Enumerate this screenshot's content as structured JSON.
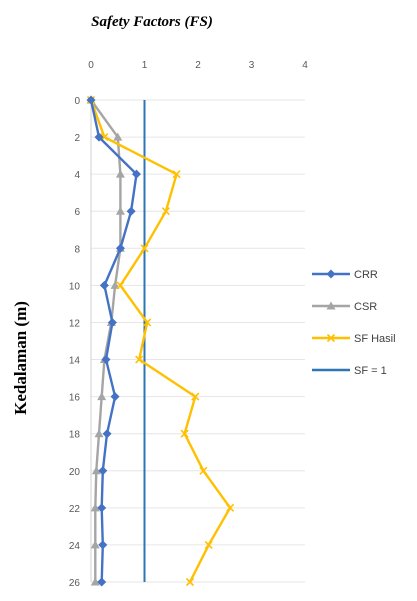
{
  "chart_data": {
    "type": "line",
    "title": "Safety Factors (FS)",
    "xlabel": "",
    "ylabel": "Kedalaman (m)",
    "x_axis_position": "top",
    "y_axis_inverted": true,
    "xlim": [
      0,
      4
    ],
    "ylim": [
      0,
      26
    ],
    "x_ticks": [
      "0",
      "1",
      "2",
      "3",
      "4"
    ],
    "y_ticks": [
      "0",
      "2",
      "4",
      "6",
      "8",
      "10",
      "12",
      "14",
      "16",
      "18",
      "20",
      "22",
      "24",
      "26"
    ],
    "grid": "horizontal",
    "legend_position": "right",
    "series": [
      {
        "name": "CRR",
        "color": "#4472C4",
        "marker": "diamond",
        "points": [
          [
            0.0,
            0
          ],
          [
            0.15,
            2
          ],
          [
            0.85,
            4
          ],
          [
            0.75,
            6
          ],
          [
            0.55,
            8
          ],
          [
            0.25,
            10
          ],
          [
            0.4,
            12
          ],
          [
            0.28,
            14
          ],
          [
            0.45,
            16
          ],
          [
            0.3,
            18
          ],
          [
            0.22,
            20
          ],
          [
            0.2,
            22
          ],
          [
            0.22,
            24
          ],
          [
            0.2,
            26
          ]
        ]
      },
      {
        "name": "CSR",
        "color": "#A5A5A5",
        "marker": "triangle",
        "points": [
          [
            0.0,
            0
          ],
          [
            0.5,
            2
          ],
          [
            0.55,
            4
          ],
          [
            0.55,
            6
          ],
          [
            0.55,
            8
          ],
          [
            0.45,
            10
          ],
          [
            0.38,
            12
          ],
          [
            0.25,
            14
          ],
          [
            0.2,
            16
          ],
          [
            0.15,
            18
          ],
          [
            0.1,
            20
          ],
          [
            0.08,
            22
          ],
          [
            0.08,
            24
          ],
          [
            0.08,
            26
          ]
        ]
      },
      {
        "name": "SF Hasil",
        "color": "#FFC000",
        "marker": "x",
        "points": [
          [
            0.0,
            0
          ],
          [
            0.25,
            2
          ],
          [
            1.6,
            4
          ],
          [
            1.4,
            6
          ],
          [
            1.0,
            8
          ],
          [
            0.55,
            10
          ],
          [
            1.05,
            12
          ],
          [
            0.9,
            14
          ],
          [
            1.95,
            16
          ],
          [
            1.75,
            18
          ],
          [
            2.1,
            20
          ],
          [
            2.6,
            22
          ],
          [
            2.2,
            24
          ],
          [
            1.85,
            26
          ]
        ]
      },
      {
        "name": "SF = 1",
        "color": "#2E75B6",
        "marker": "none",
        "points": [
          [
            1.0,
            0
          ],
          [
            1.0,
            26
          ]
        ]
      }
    ]
  }
}
